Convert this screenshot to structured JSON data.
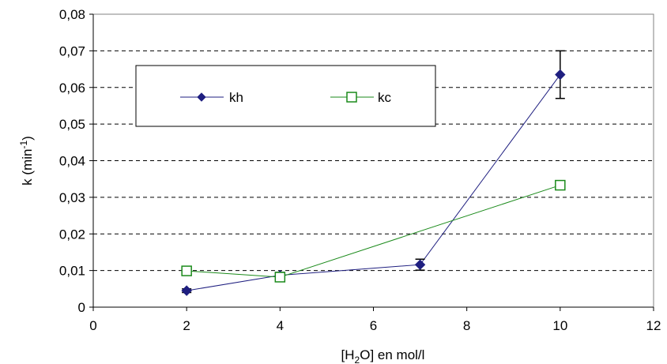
{
  "chart_data": {
    "type": "line",
    "xlabel": {
      "pre": "[H",
      "sub": "2",
      "post": "O] en mol/l"
    },
    "ylabel": {
      "pre": "k  (min",
      "sup": "-1",
      "post": ")"
    },
    "xlim": [
      0,
      12
    ],
    "ylim": [
      0,
      0.08
    ],
    "xticks": [
      0,
      2,
      4,
      6,
      8,
      10,
      12
    ],
    "yticks": [
      0,
      0.01,
      0.02,
      0.03,
      0.04,
      0.05,
      0.06,
      0.07,
      0.08
    ],
    "xtick_labels": [
      "0",
      "2",
      "4",
      "6",
      "8",
      "10",
      "12"
    ],
    "ytick_labels": [
      "0",
      "0,01",
      "0,02",
      "0,03",
      "0,04",
      "0,05",
      "0,06",
      "0,07",
      "0,08"
    ],
    "grid": "horizontal-dashed",
    "legend_position": "top-left",
    "series": [
      {
        "name": "kh",
        "marker": "diamond",
        "color": "#1f1f80",
        "x": [
          2,
          4,
          7,
          10
        ],
        "y": [
          0.0045,
          0.0087,
          0.0116,
          0.0635
        ],
        "error": [
          0.0005,
          0.0008,
          0.0015,
          0.0065
        ]
      },
      {
        "name": "kc",
        "marker": "open-square",
        "color": "#1a8a1a",
        "x": [
          2,
          4,
          10
        ],
        "y": [
          0.0099,
          0.0082,
          0.0333
        ]
      }
    ]
  }
}
